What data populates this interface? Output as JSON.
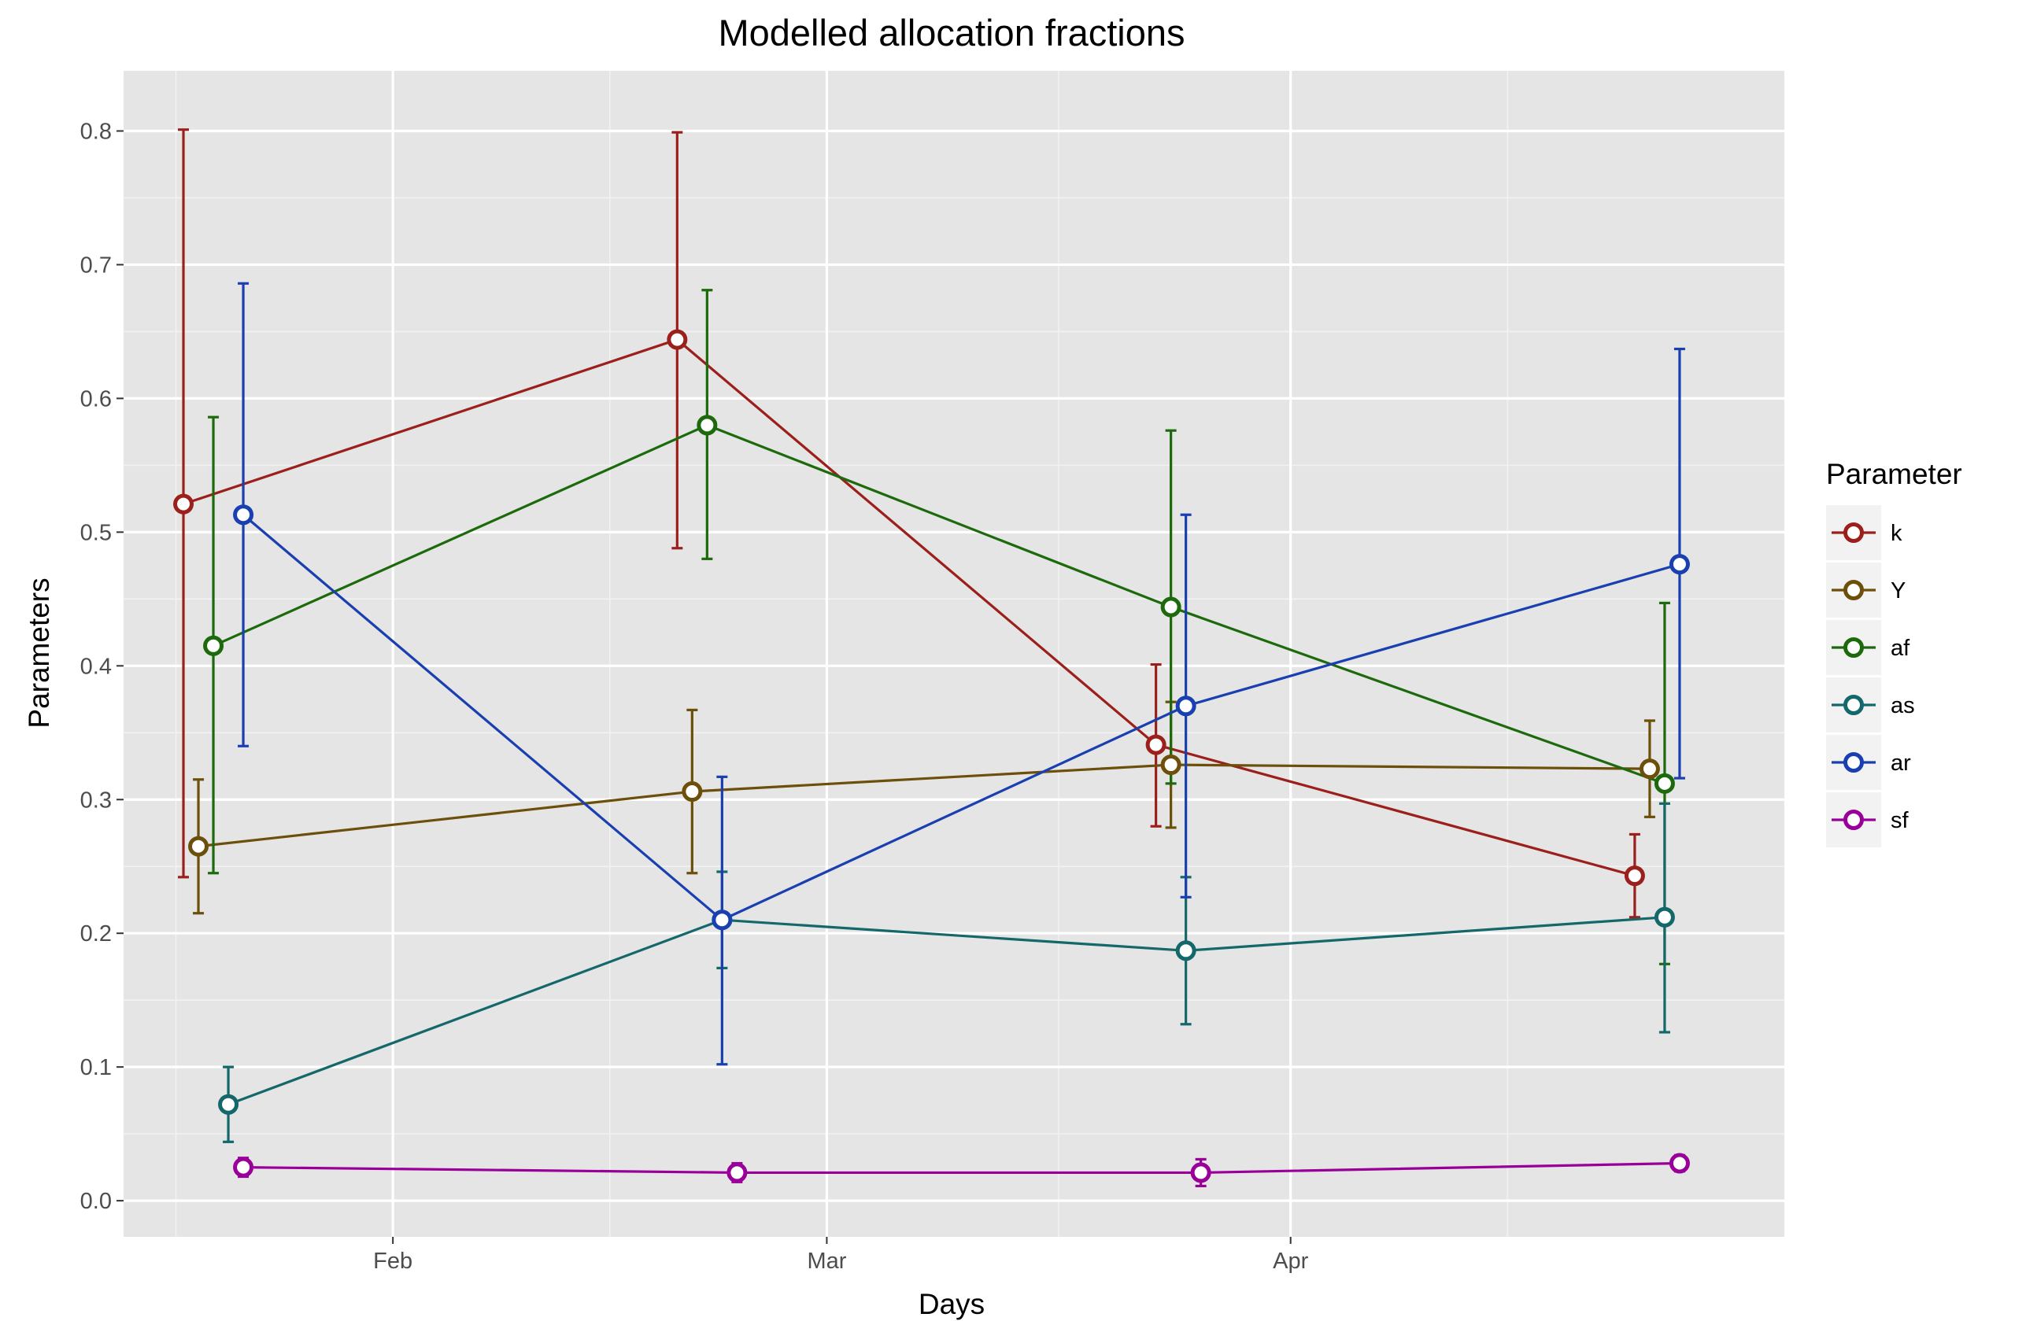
{
  "chart_data": {
    "type": "line",
    "title": "Modelled allocation fractions",
    "xlabel": "Days",
    "ylabel": "Parameters",
    "x_ticks": [
      "Feb",
      "Mar",
      "Apr"
    ],
    "x_tick_dates": [
      "2016-02-01",
      "2016-03-01",
      "2016-04-01"
    ],
    "x_range": [
      "2016-01-14",
      "2016-05-04"
    ],
    "ylim": [
      -0.027,
      0.845
    ],
    "y_ticks": [
      "0.0",
      "0.1",
      "0.2",
      "0.3",
      "0.4",
      "0.5",
      "0.6",
      "0.7",
      "0.8"
    ],
    "grid": true,
    "error_bars": true,
    "legend": {
      "title": "Parameter",
      "position": "right"
    },
    "series": [
      {
        "name": "k",
        "color": "#9b1f1a",
        "points": [
          {
            "x": "2016-01-18",
            "y": 0.521,
            "lo": 0.242,
            "hi": 0.801
          },
          {
            "x": "2016-02-20",
            "y": 0.644,
            "lo": 0.488,
            "hi": 0.799
          },
          {
            "x": "2016-03-23",
            "y": 0.341,
            "lo": 0.28,
            "hi": 0.401
          },
          {
            "x": "2016-04-24",
            "y": 0.243,
            "lo": 0.212,
            "hi": 0.274
          }
        ]
      },
      {
        "name": "Y",
        "color": "#6b4f0a",
        "points": [
          {
            "x": "2016-01-19",
            "y": 0.265,
            "lo": 0.215,
            "hi": 0.315
          },
          {
            "x": "2016-02-21",
            "y": 0.306,
            "lo": 0.245,
            "hi": 0.367
          },
          {
            "x": "2016-03-24",
            "y": 0.326,
            "lo": 0.279,
            "hi": 0.373
          },
          {
            "x": "2016-04-25",
            "y": 0.323,
            "lo": 0.287,
            "hi": 0.359
          }
        ]
      },
      {
        "name": "af",
        "color": "#1c6a0c",
        "points": [
          {
            "x": "2016-01-20",
            "y": 0.415,
            "lo": 0.245,
            "hi": 0.586
          },
          {
            "x": "2016-02-22",
            "y": 0.58,
            "lo": 0.48,
            "hi": 0.681
          },
          {
            "x": "2016-03-24",
            "y": 0.444,
            "lo": 0.312,
            "hi": 0.576
          },
          {
            "x": "2016-04-26",
            "y": 0.312,
            "lo": 0.177,
            "hi": 0.447
          }
        ]
      },
      {
        "name": "as",
        "color": "#14686a",
        "points": [
          {
            "x": "2016-01-21",
            "y": 0.072,
            "lo": 0.044,
            "hi": 0.1
          },
          {
            "x": "2016-02-23",
            "y": 0.21,
            "lo": 0.174,
            "hi": 0.246
          },
          {
            "x": "2016-03-25",
            "y": 0.187,
            "lo": 0.132,
            "hi": 0.242
          },
          {
            "x": "2016-04-26",
            "y": 0.212,
            "lo": 0.126,
            "hi": 0.297
          }
        ]
      },
      {
        "name": "ar",
        "color": "#1a3fb0",
        "points": [
          {
            "x": "2016-01-22",
            "y": 0.513,
            "lo": 0.34,
            "hi": 0.686
          },
          {
            "x": "2016-02-23",
            "y": 0.21,
            "lo": 0.102,
            "hi": 0.317
          },
          {
            "x": "2016-03-25",
            "y": 0.37,
            "lo": 0.227,
            "hi": 0.513
          },
          {
            "x": "2016-04-27",
            "y": 0.476,
            "lo": 0.316,
            "hi": 0.637
          }
        ]
      },
      {
        "name": "sf",
        "color": "#990099",
        "points": [
          {
            "x": "2016-01-22",
            "y": 0.025,
            "lo": 0.018,
            "hi": 0.032
          },
          {
            "x": "2016-02-24",
            "y": 0.021,
            "lo": 0.014,
            "hi": 0.028
          },
          {
            "x": "2016-03-26",
            "y": 0.021,
            "lo": 0.011,
            "hi": 0.031
          },
          {
            "x": "2016-04-27",
            "y": 0.028,
            "lo": 0.022,
            "hi": 0.034
          }
        ]
      }
    ]
  }
}
